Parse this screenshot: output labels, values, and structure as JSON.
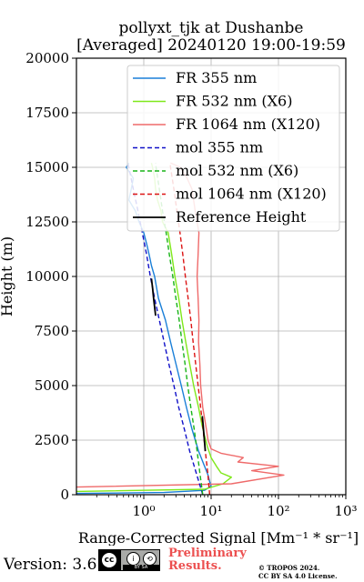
{
  "title": {
    "line1": "pollyxt_tjk at Dushanbe",
    "line2": "[Averaged] 20240120 19:00-19:59"
  },
  "footer": {
    "version": "Version: 3.6",
    "license_badge_text": "BY    SA",
    "preliminary_line1": "Preliminary",
    "preliminary_line2": "Results.",
    "copyright_line1": "© TROPOS 2024.",
    "copyright_line2": "CC BY SA 4.0 License."
  },
  "colors": {
    "fr355": "#1a7fd8",
    "fr532": "#7fe81a",
    "fr1064": "#ef6a6a",
    "mol355": "#1010c8",
    "mol532": "#18b418",
    "mol1064": "#dc1414",
    "reference": "#000000",
    "grid": "#b0b0b0",
    "preliminary_text": "#ec5050"
  },
  "chart_data": {
    "type": "line",
    "xlabel": "Range-Corrected Signal [Mm⁻¹ * sr⁻¹]",
    "ylabel": "Height (m)",
    "xscale": "log",
    "xlim": [
      0.1,
      1000
    ],
    "ylim": [
      0,
      20000
    ],
    "x_ticks": [
      {
        "value": 1,
        "label": "10⁰"
      },
      {
        "value": 10,
        "label": "10¹"
      },
      {
        "value": 100,
        "label": "10²"
      },
      {
        "value": 1000,
        "label": "10³"
      }
    ],
    "y_ticks": [
      0,
      2500,
      5000,
      7500,
      10000,
      12500,
      15000,
      17500,
      20000
    ],
    "grid": true,
    "legend_position": "top-right",
    "series": [
      {
        "name": "FR 355 nm",
        "style": "solid",
        "color_key": "fr355",
        "points": [
          [
            0.1,
            60
          ],
          [
            2,
            100
          ],
          [
            8,
            200
          ],
          [
            10,
            400
          ],
          [
            9.5,
            600
          ],
          [
            9,
            900
          ],
          [
            8,
            1300
          ],
          [
            6.5,
            2000
          ],
          [
            5.2,
            3000
          ],
          [
            4.3,
            4000
          ],
          [
            3.6,
            5000
          ],
          [
            3.0,
            6000
          ],
          [
            2.5,
            7000
          ],
          [
            2.1,
            8000
          ],
          [
            1.65,
            9000
          ],
          [
            1.45,
            10000
          ],
          [
            1.3,
            10500
          ],
          [
            1.2,
            11000
          ],
          [
            1.1,
            11500
          ],
          [
            1.0,
            12000
          ],
          [
            0.85,
            12500
          ],
          [
            0.75,
            13000
          ],
          [
            0.6,
            13500
          ],
          [
            0.65,
            14000
          ],
          [
            0.7,
            14500
          ],
          [
            0.55,
            15000
          ],
          [
            0.6,
            15200
          ]
        ]
      },
      {
        "name": "FR 532 nm (X6)",
        "style": "solid",
        "color_key": "fr532",
        "points": [
          [
            0.1,
            150
          ],
          [
            8,
            250
          ],
          [
            15,
            500
          ],
          [
            20,
            800
          ],
          [
            14,
            1000
          ],
          [
            12,
            1300
          ],
          [
            10,
            1700
          ],
          [
            8.8,
            2200
          ],
          [
            8.0,
            2700
          ],
          [
            7.3,
            3200
          ],
          [
            6.5,
            4000
          ],
          [
            5.5,
            5000
          ],
          [
            4.8,
            6000
          ],
          [
            4.2,
            7000
          ],
          [
            3.7,
            8000
          ],
          [
            3.3,
            9000
          ],
          [
            2.9,
            10000
          ],
          [
            2.6,
            11000
          ],
          [
            2.3,
            12000
          ],
          [
            1.9,
            12500
          ],
          [
            1.8,
            13000
          ],
          [
            1.6,
            13500
          ],
          [
            1.5,
            14000
          ],
          [
            1.45,
            14500
          ],
          [
            1.35,
            15000
          ],
          [
            1.3,
            15200
          ]
        ]
      },
      {
        "name": "FR 1064 nm (X120)",
        "style": "solid",
        "color_key": "fr1064",
        "points": [
          [
            0.1,
            350
          ],
          [
            20,
            500
          ],
          [
            120,
            900
          ],
          [
            40,
            1100
          ],
          [
            100,
            1300
          ],
          [
            25,
            1500
          ],
          [
            30,
            1700
          ],
          [
            14,
            1900
          ],
          [
            10,
            2100
          ],
          [
            9,
            2500
          ],
          [
            8.5,
            3000
          ],
          [
            8.0,
            3500
          ],
          [
            7.5,
            4000
          ],
          [
            7.0,
            5000
          ],
          [
            6.8,
            6000
          ],
          [
            6.5,
            7000
          ],
          [
            6.6,
            8000
          ],
          [
            6.4,
            9000
          ],
          [
            6.2,
            10000
          ],
          [
            6.4,
            11000
          ],
          [
            6.6,
            12000
          ],
          [
            5.8,
            13000
          ],
          [
            5.2,
            14000
          ],
          [
            4.4,
            14500
          ],
          [
            3.5,
            15000
          ],
          [
            2.5,
            15200
          ]
        ]
      },
      {
        "name": "mol 355 nm",
        "style": "dashed",
        "color_key": "mol355",
        "points": [
          [
            7.5,
            0
          ],
          [
            6.0,
            1000
          ],
          [
            4.8,
            2000
          ],
          [
            4.0,
            3000
          ],
          [
            3.3,
            4000
          ],
          [
            2.8,
            5000
          ],
          [
            2.35,
            6000
          ],
          [
            2.0,
            7000
          ],
          [
            1.7,
            8000
          ],
          [
            1.45,
            9000
          ],
          [
            1.25,
            10000
          ],
          [
            1.1,
            11000
          ],
          [
            0.95,
            12000
          ],
          [
            0.82,
            13000
          ],
          [
            0.7,
            14000
          ],
          [
            0.6,
            15000
          ],
          [
            0.58,
            15200
          ]
        ]
      },
      {
        "name": "mol 532 nm (X6)",
        "style": "dashed",
        "color_key": "mol532",
        "points": [
          [
            7.5,
            0
          ],
          [
            6.8,
            1000
          ],
          [
            6.2,
            2000
          ],
          [
            5.6,
            3000
          ],
          [
            5.0,
            4000
          ],
          [
            4.5,
            5000
          ],
          [
            4.1,
            6000
          ],
          [
            3.7,
            7000
          ],
          [
            3.35,
            8000
          ],
          [
            3.0,
            9000
          ],
          [
            2.7,
            10000
          ],
          [
            2.4,
            11000
          ],
          [
            2.15,
            12000
          ],
          [
            1.9,
            13000
          ],
          [
            1.7,
            14000
          ],
          [
            1.52,
            15000
          ],
          [
            1.5,
            15200
          ]
        ]
      },
      {
        "name": "mol 1064 nm (X120)",
        "style": "dashed",
        "color_key": "mol1064",
        "points": [
          [
            9.5,
            0
          ],
          [
            8.9,
            1000
          ],
          [
            8.2,
            2000
          ],
          [
            7.6,
            3000
          ],
          [
            7.0,
            4000
          ],
          [
            6.4,
            5000
          ],
          [
            5.9,
            6000
          ],
          [
            5.4,
            7000
          ],
          [
            5.0,
            8000
          ],
          [
            4.55,
            9000
          ],
          [
            4.15,
            10000
          ],
          [
            3.8,
            11000
          ],
          [
            3.45,
            12000
          ],
          [
            3.1,
            13000
          ],
          [
            2.8,
            14000
          ],
          [
            2.5,
            15000
          ],
          [
            2.45,
            15200
          ]
        ]
      },
      {
        "name": "Reference Height",
        "style": "solid",
        "color_key": "reference",
        "segments": [
          [
            [
              1.5,
              8200
            ],
            [
              1.45,
              8600
            ],
            [
              1.4,
              9000
            ],
            [
              1.35,
              9500
            ],
            [
              1.3,
              9900
            ]
          ],
          [
            [
              8.2,
              2000
            ],
            [
              8.0,
              2400
            ],
            [
              7.8,
              2800
            ],
            [
              7.6,
              3200
            ],
            [
              7.4,
              3600
            ]
          ]
        ]
      }
    ]
  }
}
